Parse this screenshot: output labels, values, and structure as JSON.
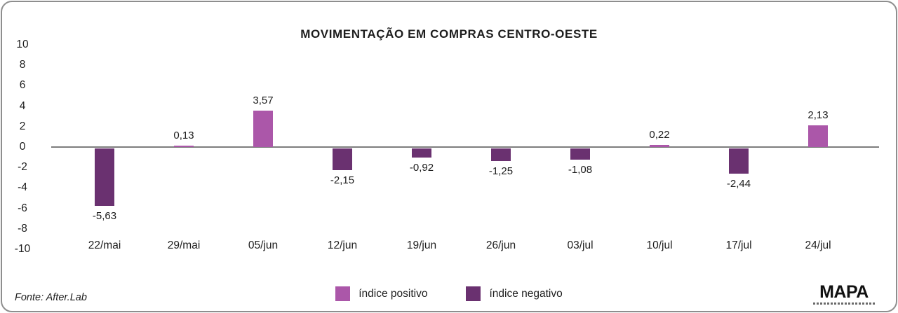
{
  "card": {
    "background": "#ffffff",
    "border_color": "#8e8e8e"
  },
  "chart_data": {
    "type": "bar",
    "title": "MOVIMENTAÇÃO EM COMPRAS CENTRO-OESTE",
    "categories": [
      "22/mai",
      "29/mai",
      "05/jun",
      "12/jun",
      "19/jun",
      "26/jun",
      "03/jul",
      "10/jul",
      "17/jul",
      "24/jul"
    ],
    "values": [
      -5.63,
      0.13,
      3.57,
      -2.15,
      -0.92,
      -1.25,
      -1.08,
      0.22,
      -2.44,
      2.13
    ],
    "value_labels": [
      "-5,63",
      "0,13",
      "3,57",
      "-2,15",
      "-0,92",
      "-1,25",
      "-1,08",
      "0,22",
      "-2,44",
      "2,13"
    ],
    "xlabel": "",
    "ylabel": "",
    "ylim": [
      -10,
      10
    ],
    "y_ticks": [
      10,
      8,
      6,
      4,
      2,
      0,
      -2,
      -4,
      -6,
      -8,
      -10
    ],
    "grid": "off",
    "zero_line": true,
    "legend": {
      "position": "bottom",
      "entries": [
        {
          "label": "índice positivo",
          "color": "#ab57a9"
        },
        {
          "label": "índice negativo",
          "color": "#6a3170"
        }
      ]
    },
    "colors": {
      "positive": "#ab57a9",
      "negative": "#6a3170",
      "axis_line": "#7d7d7d",
      "text": "#1d1d1d"
    }
  },
  "footer": {
    "source": "Fonte: After.Lab",
    "logo": "MAPA"
  }
}
